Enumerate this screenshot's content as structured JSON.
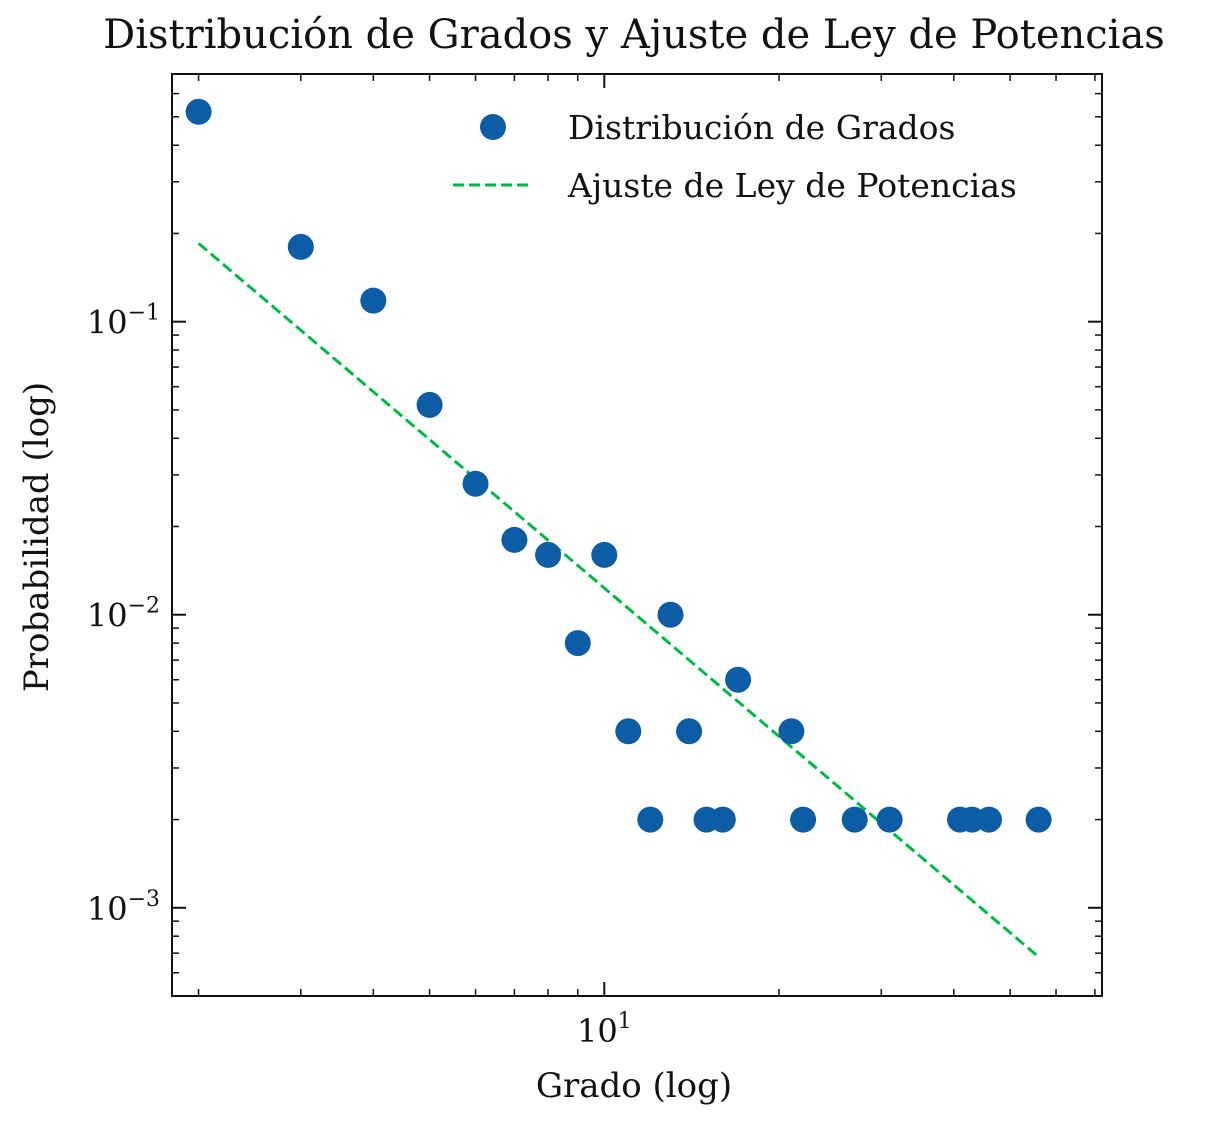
{
  "chart_data": {
    "type": "scatter",
    "title": "Distribución de Grados y Ajuste de Ley de Potencias",
    "xlabel": "Grado (log)",
    "ylabel": "Probabilidad (log)",
    "xscale": "log",
    "yscale": "log",
    "xlim": [
      1.8,
      72
    ],
    "ylim": [
      0.0005,
      0.7
    ],
    "x_ticks": [
      {
        "value": 10,
        "label": "10^1"
      }
    ],
    "y_ticks": [
      {
        "value": 0.1,
        "label": "10^-1"
      },
      {
        "value": 0.01,
        "label": "10^-2"
      },
      {
        "value": 0.001,
        "label": "10^-3"
      }
    ],
    "legend_position": "top-right",
    "series": [
      {
        "name": "Distribución de Grados",
        "kind": "scatter",
        "color": "#0C5DA5",
        "x": [
          2,
          3,
          4,
          5,
          6,
          7,
          8,
          9,
          10,
          11,
          12,
          13,
          14,
          15,
          16,
          17,
          21,
          22,
          27,
          31,
          41,
          43,
          46,
          56
        ],
        "y": [
          0.52,
          0.18,
          0.118,
          0.052,
          0.028,
          0.018,
          0.016,
          0.008,
          0.016,
          0.004,
          0.002,
          0.01,
          0.004,
          0.002,
          0.002,
          0.006,
          0.004,
          0.002,
          0.002,
          0.002,
          0.002,
          0.002,
          0.002,
          0.002
        ]
      },
      {
        "name": "Ajuste de Ley de Potencias",
        "kind": "line",
        "style": "dashed",
        "color": "#00B945",
        "x": [
          2,
          56
        ],
        "y": [
          0.185,
          0.00068
        ]
      }
    ]
  }
}
